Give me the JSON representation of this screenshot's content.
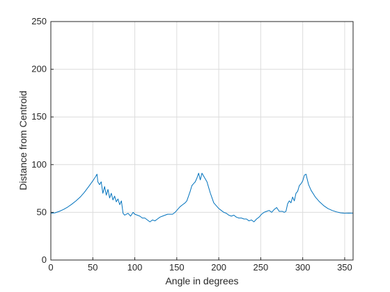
{
  "chart_data": {
    "type": "line",
    "title": "",
    "xlabel": "Angle in degrees",
    "ylabel": "Distance from Centroid",
    "xlim": [
      0,
      360
    ],
    "ylim": [
      0,
      250
    ],
    "xticks": [
      0,
      50,
      100,
      150,
      200,
      250,
      300,
      350
    ],
    "yticks": [
      0,
      50,
      100,
      150,
      200,
      250
    ],
    "grid": true,
    "line_color": "#0072BD",
    "series": [
      {
        "name": "",
        "x": [
          0,
          5,
          10,
          15,
          20,
          25,
          30,
          35,
          40,
          45,
          50,
          53,
          55,
          56,
          58,
          60,
          62,
          64,
          66,
          68,
          70,
          72,
          74,
          76,
          78,
          80,
          82,
          84,
          86,
          88,
          90,
          92,
          95,
          98,
          100,
          103,
          106,
          109,
          112,
          115,
          118,
          121,
          124,
          127,
          130,
          133,
          136,
          139,
          142,
          145,
          148,
          151,
          154,
          157,
          160,
          162,
          164,
          166,
          168,
          170,
          172,
          174,
          176,
          178,
          180,
          182,
          184,
          186,
          188,
          190,
          192,
          194,
          196,
          198,
          200,
          203,
          206,
          209,
          212,
          215,
          218,
          221,
          224,
          227,
          230,
          233,
          236,
          239,
          242,
          245,
          248,
          251,
          254,
          257,
          260,
          263,
          266,
          269,
          272,
          274,
          276,
          278,
          280,
          282,
          284,
          286,
          288,
          290,
          292,
          294,
          296,
          298,
          300,
          302,
          304,
          305,
          307,
          310,
          315,
          320,
          325,
          330,
          335,
          340,
          345,
          350,
          355,
          360
        ],
        "y": [
          49,
          49.5,
          51,
          53,
          55.5,
          58.5,
          62,
          66,
          71,
          77,
          83,
          87,
          90,
          82,
          79,
          82,
          70,
          77,
          68,
          74,
          65,
          70,
          63,
          67,
          61,
          64,
          58,
          62,
          49,
          47,
          48,
          49,
          46,
          50,
          48,
          47,
          46,
          44,
          44,
          42,
          40,
          42,
          41,
          43,
          45,
          46,
          47,
          48,
          48,
          48,
          50,
          53,
          56,
          58,
          60,
          62,
          67,
          72,
          78,
          80,
          82,
          86,
          91,
          84,
          91,
          88,
          85,
          82,
          76,
          70,
          65,
          60,
          58,
          56,
          54,
          52,
          50,
          49,
          47,
          46,
          47,
          45,
          44,
          44,
          43,
          43,
          41,
          42,
          40,
          43,
          45,
          48,
          50,
          51,
          52,
          50,
          53,
          55,
          51,
          51,
          51,
          50,
          51,
          59,
          62,
          60,
          66,
          62,
          70,
          72,
          78,
          80,
          83,
          89,
          90,
          86,
          79,
          73,
          66,
          61,
          57,
          54,
          52,
          50.5,
          49.5,
          49,
          49.2,
          49
        ]
      }
    ]
  }
}
